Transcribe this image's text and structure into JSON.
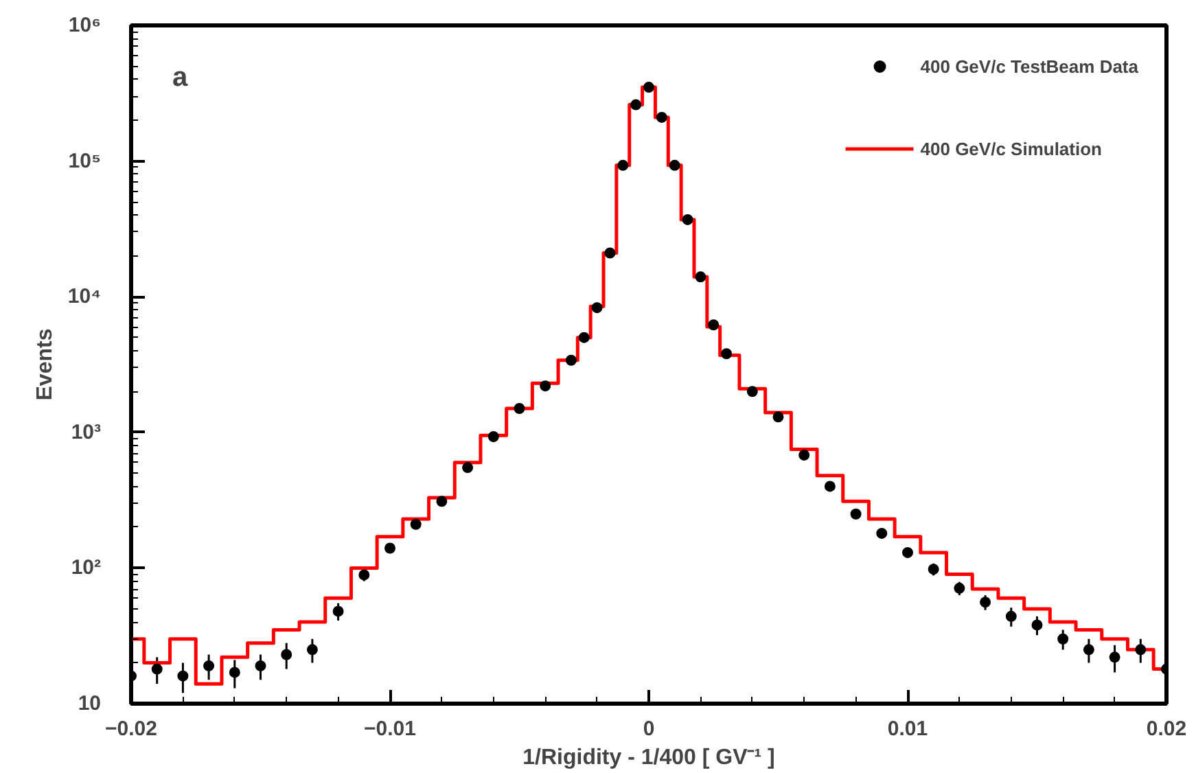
{
  "chart_data": {
    "type": "scatter",
    "xlabel": "1/Rigidity - 1/400 [ GV⁻¹ ]",
    "ylabel": "Events",
    "annotations": [
      "a"
    ],
    "log": "y",
    "grid": false,
    "legend": "top right",
    "xlim": [
      -0.02,
      0.02
    ],
    "xticks": [
      -0.02,
      -0.01,
      0,
      0.01,
      0.02
    ],
    "ylim": [
      10,
      1000000
    ],
    "yticks": [
      10,
      {
        "value": 100,
        "label": "10²"
      },
      {
        "value": 1000,
        "label": "10³"
      },
      {
        "value": 10000,
        "label": "10⁴"
      },
      {
        "value": 100000,
        "label": "10⁵"
      },
      {
        "value": 1000000,
        "label": "10⁶"
      }
    ],
    "series": [
      {
        "name": "400 GeV/c TestBeam Data",
        "marker": "circle",
        "color": "#000000",
        "x": [
          -0.02,
          -0.019,
          -0.018,
          -0.017,
          -0.016,
          -0.015,
          -0.014,
          -0.013,
          -0.012,
          -0.011,
          -0.01,
          -0.009,
          -0.008,
          -0.007,
          -0.006,
          -0.005,
          -0.004,
          -0.003,
          -0.0025,
          -0.002,
          -0.0015,
          -0.001,
          -0.0005,
          0,
          0.0005,
          0.001,
          0.0015,
          0.002,
          0.0025,
          0.003,
          0.004,
          0.005,
          0.006,
          0.007,
          0.008,
          0.009,
          0.01,
          0.011,
          0.012,
          0.013,
          0.014,
          0.015,
          0.016,
          0.017,
          0.018,
          0.019,
          0.02
        ],
        "values": [
          16,
          18,
          16,
          19,
          17,
          19,
          23,
          25,
          48,
          89,
          140,
          210,
          310,
          550,
          930,
          1500,
          2200,
          3400,
          5000,
          8300,
          21000,
          93000,
          260000,
          350000,
          210000,
          93000,
          37000,
          14000,
          6200,
          3800,
          2000,
          1300,
          680,
          400,
          250,
          180,
          130,
          98,
          71,
          56,
          44,
          38,
          30,
          25,
          22,
          25,
          18
        ],
        "errors": [
          4,
          4,
          4,
          4,
          4,
          4,
          5,
          5,
          7,
          9,
          null,
          null,
          null,
          null,
          null,
          null,
          null,
          null,
          null,
          null,
          null,
          null,
          null,
          null,
          null,
          null,
          null,
          null,
          null,
          null,
          null,
          null,
          null,
          null,
          null,
          null,
          null,
          10,
          8,
          7,
          7,
          6,
          5,
          5,
          5,
          5,
          4
        ]
      },
      {
        "name": "400 GeV/c Simulation",
        "type": "step",
        "color": "#ff0000",
        "x": [
          -0.02,
          -0.019,
          -0.018,
          -0.017,
          -0.016,
          -0.015,
          -0.014,
          -0.013,
          -0.012,
          -0.011,
          -0.01,
          -0.009,
          -0.008,
          -0.007,
          -0.006,
          -0.005,
          -0.004,
          -0.003,
          -0.0025,
          -0.002,
          -0.0015,
          -0.001,
          -0.0005,
          0,
          0.0005,
          0.001,
          0.0015,
          0.002,
          0.0025,
          0.003,
          0.004,
          0.005,
          0.006,
          0.007,
          0.008,
          0.009,
          0.01,
          0.011,
          0.012,
          0.013,
          0.014,
          0.015,
          0.016,
          0.017,
          0.018,
          0.019,
          0.02
        ],
        "values": [
          30,
          20,
          30,
          14,
          22,
          28,
          35,
          40,
          60,
          100,
          170,
          230,
          330,
          600,
          950,
          1500,
          2300,
          3400,
          5000,
          8500,
          21000,
          93000,
          260000,
          350000,
          210000,
          93000,
          37000,
          14000,
          6000,
          3700,
          2100,
          1400,
          750,
          480,
          310,
          230,
          170,
          130,
          90,
          70,
          60,
          50,
          40,
          35,
          30,
          25,
          18
        ]
      }
    ]
  }
}
